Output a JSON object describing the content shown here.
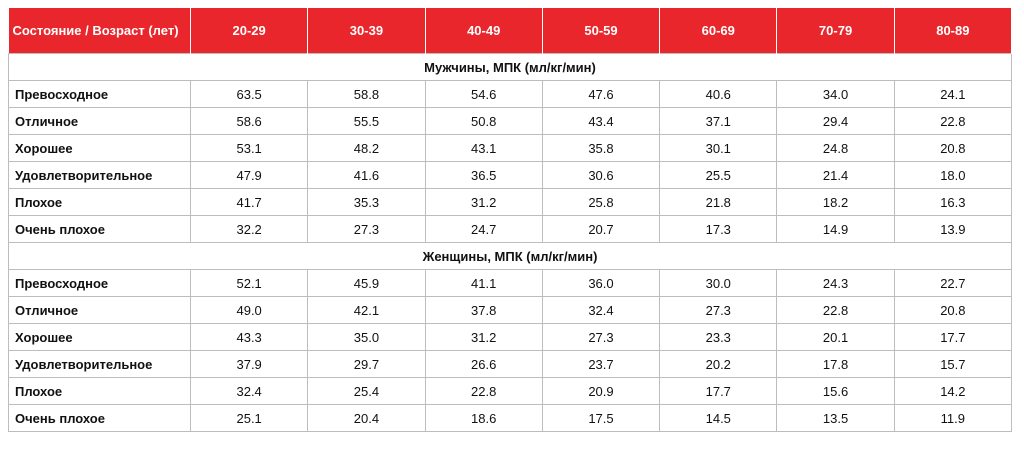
{
  "table": {
    "header": [
      "Состояние / Возраст (лет)",
      "20-29",
      "30-39",
      "40-49",
      "50-59",
      "60-69",
      "70-79",
      "80-89"
    ],
    "sections": [
      {
        "title": "Мужчины, МПК (мл/кг/мин)",
        "rows": [
          {
            "label": "Превосходное",
            "values": [
              "63.5",
              "58.8",
              "54.6",
              "47.6",
              "40.6",
              "34.0",
              "24.1"
            ]
          },
          {
            "label": "Отличное",
            "values": [
              "58.6",
              "55.5",
              "50.8",
              "43.4",
              "37.1",
              "29.4",
              "22.8"
            ]
          },
          {
            "label": "Хорошее",
            "values": [
              "53.1",
              "48.2",
              "43.1",
              "35.8",
              "30.1",
              "24.8",
              "20.8"
            ]
          },
          {
            "label": "Удовлетворительное",
            "values": [
              "47.9",
              "41.6",
              "36.5",
              "30.6",
              "25.5",
              "21.4",
              "18.0"
            ]
          },
          {
            "label": "Плохое",
            "values": [
              "41.7",
              "35.3",
              "31.2",
              "25.8",
              "21.8",
              "18.2",
              "16.3"
            ]
          },
          {
            "label": "Очень плохое",
            "values": [
              "32.2",
              "27.3",
              "24.7",
              "20.7",
              "17.3",
              "14.9",
              "13.9"
            ]
          }
        ]
      },
      {
        "title": "Женщины, МПК (мл/кг/мин)",
        "rows": [
          {
            "label": "Превосходное",
            "values": [
              "52.1",
              "45.9",
              "41.1",
              "36.0",
              "30.0",
              "24.3",
              "22.7"
            ]
          },
          {
            "label": "Отличное",
            "values": [
              "49.0",
              "42.1",
              "37.8",
              "32.4",
              "27.3",
              "22.8",
              "20.8"
            ]
          },
          {
            "label": "Хорошее",
            "values": [
              "43.3",
              "35.0",
              "31.2",
              "27.3",
              "23.3",
              "20.1",
              "17.7"
            ]
          },
          {
            "label": "Удовлетворительное",
            "values": [
              "37.9",
              "29.7",
              "26.6",
              "23.7",
              "20.2",
              "17.8",
              "15.7"
            ]
          },
          {
            "label": "Плохое",
            "values": [
              "32.4",
              "25.4",
              "22.8",
              "20.9",
              "17.7",
              "15.6",
              "14.2"
            ]
          },
          {
            "label": "Очень плохое",
            "values": [
              "25.1",
              "20.4",
              "18.6",
              "17.5",
              "14.5",
              "13.5",
              "11.9"
            ]
          }
        ]
      }
    ]
  }
}
